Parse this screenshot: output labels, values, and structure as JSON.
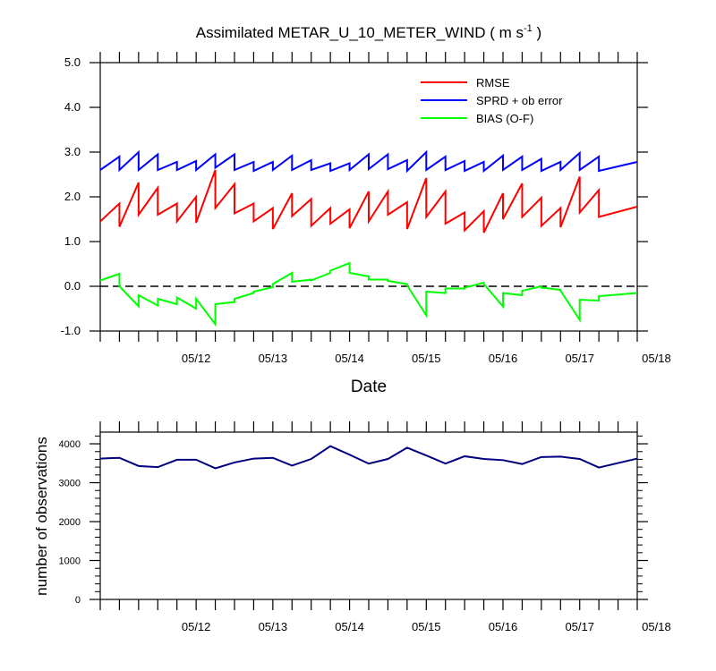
{
  "chart_data": [
    {
      "type": "line",
      "title": "Assimilated METAR_U_10_METER_WIND",
      "units": "( m s",
      "units_exp": "-1",
      "units_close": " )",
      "xlabel": "Date",
      "ylabel": "",
      "x_range": [
        "05/11 06:00",
        "05/18 06:00"
      ],
      "ylim": [
        -1.0,
        5.0
      ],
      "ytick_labels": [
        "-1.0",
        "0.0",
        "1.0",
        "2.0",
        "3.0",
        "4.0",
        "5.0"
      ],
      "xtick_labels": [
        "05/12",
        "05/13",
        "05/14",
        "05/15",
        "05/16",
        "05/17",
        "05/18"
      ],
      "zero_line": "dashed",
      "grid": false,
      "legend_position": "top-right",
      "series": [
        {
          "name": "RMSE",
          "color": "#ff0000",
          "points": [
            [
              "05/11 06:00",
              1.45
            ],
            [
              "05/11 12:00",
              1.85
            ],
            [
              "05/11 12:00",
              1.33
            ],
            [
              "05/11 18:00",
              2.32
            ],
            [
              "05/11 18:00",
              1.6
            ],
            [
              "05/12 00:00",
              2.2
            ],
            [
              "05/12 00:00",
              1.6
            ],
            [
              "05/12 06:00",
              1.85
            ],
            [
              "05/12 06:00",
              1.45
            ],
            [
              "05/12 12:00",
              2.0
            ],
            [
              "05/12 12:00",
              1.42
            ],
            [
              "05/12 18:00",
              2.6
            ],
            [
              "05/12 18:00",
              1.75
            ],
            [
              "05/13 00:00",
              2.28
            ],
            [
              "05/13 00:00",
              1.63
            ],
            [
              "05/13 06:00",
              1.85
            ],
            [
              "05/13 06:00",
              1.45
            ],
            [
              "05/13 12:00",
              1.75
            ],
            [
              "05/13 12:00",
              1.28
            ],
            [
              "05/13 18:00",
              2.08
            ],
            [
              "05/13 18:00",
              1.57
            ],
            [
              "05/14 00:00",
              1.95
            ],
            [
              "05/14 00:00",
              1.35
            ],
            [
              "05/14 06:00",
              1.75
            ],
            [
              "05/14 06:00",
              1.4
            ],
            [
              "05/14 12:00",
              1.72
            ],
            [
              "05/14 12:00",
              1.3
            ],
            [
              "05/14 18:00",
              2.12
            ],
            [
              "05/14 18:00",
              1.45
            ],
            [
              "05/15 00:00",
              2.12
            ],
            [
              "05/15 00:00",
              1.6
            ],
            [
              "05/15 06:00",
              1.88
            ],
            [
              "05/15 06:00",
              1.28
            ],
            [
              "05/15 12:00",
              2.42
            ],
            [
              "05/15 12:00",
              1.55
            ],
            [
              "05/15 18:00",
              2.12
            ],
            [
              "05/15 18:00",
              1.4
            ],
            [
              "05/16 00:00",
              1.65
            ],
            [
              "05/16 00:00",
              1.25
            ],
            [
              "05/16 06:00",
              1.68
            ],
            [
              "05/16 06:00",
              1.2
            ],
            [
              "05/16 12:00",
              2.08
            ],
            [
              "05/16 12:00",
              1.5
            ],
            [
              "05/16 18:00",
              2.3
            ],
            [
              "05/16 18:00",
              1.55
            ],
            [
              "05/17 00:00",
              1.98
            ],
            [
              "05/17 00:00",
              1.35
            ],
            [
              "05/17 06:00",
              1.75
            ],
            [
              "05/17 06:00",
              1.32
            ],
            [
              "05/17 12:00",
              2.45
            ],
            [
              "05/17 12:00",
              1.65
            ],
            [
              "05/17 18:00",
              2.15
            ],
            [
              "05/17 18:00",
              1.55
            ],
            [
              "05/18 06:00",
              1.78
            ]
          ]
        },
        {
          "name": "SPRD + ob error",
          "color": "#0000ff",
          "points": [
            [
              "05/11 06:00",
              2.6
            ],
            [
              "05/11 12:00",
              2.9
            ],
            [
              "05/11 12:00",
              2.6
            ],
            [
              "05/11 18:00",
              3.0
            ],
            [
              "05/11 18:00",
              2.6
            ],
            [
              "05/12 00:00",
              2.95
            ],
            [
              "05/12 00:00",
              2.6
            ],
            [
              "05/12 06:00",
              2.78
            ],
            [
              "05/12 06:00",
              2.6
            ],
            [
              "05/12 12:00",
              2.8
            ],
            [
              "05/12 12:00",
              2.6
            ],
            [
              "05/12 18:00",
              2.95
            ],
            [
              "05/12 18:00",
              2.65
            ],
            [
              "05/13 00:00",
              2.95
            ],
            [
              "05/13 00:00",
              2.6
            ],
            [
              "05/13 06:00",
              2.78
            ],
            [
              "05/13 06:00",
              2.58
            ],
            [
              "05/13 12:00",
              2.78
            ],
            [
              "05/13 12:00",
              2.6
            ],
            [
              "05/13 18:00",
              2.92
            ],
            [
              "05/13 18:00",
              2.6
            ],
            [
              "05/14 00:00",
              2.82
            ],
            [
              "05/14 00:00",
              2.6
            ],
            [
              "05/14 06:00",
              2.75
            ],
            [
              "05/14 06:00",
              2.58
            ],
            [
              "05/14 12:00",
              2.75
            ],
            [
              "05/14 12:00",
              2.6
            ],
            [
              "05/14 18:00",
              2.95
            ],
            [
              "05/14 18:00",
              2.62
            ],
            [
              "05/15 00:00",
              2.95
            ],
            [
              "05/15 00:00",
              2.62
            ],
            [
              "05/15 06:00",
              2.82
            ],
            [
              "05/15 06:00",
              2.58
            ],
            [
              "05/15 12:00",
              3.0
            ],
            [
              "05/15 12:00",
              2.6
            ],
            [
              "05/15 18:00",
              2.9
            ],
            [
              "05/15 18:00",
              2.6
            ],
            [
              "05/16 00:00",
              2.8
            ],
            [
              "05/16 00:00",
              2.58
            ],
            [
              "05/16 06:00",
              2.78
            ],
            [
              "05/16 06:00",
              2.58
            ],
            [
              "05/16 12:00",
              2.92
            ],
            [
              "05/16 12:00",
              2.6
            ],
            [
              "05/16 18:00",
              2.9
            ],
            [
              "05/16 18:00",
              2.6
            ],
            [
              "05/17 00:00",
              2.85
            ],
            [
              "05/17 00:00",
              2.58
            ],
            [
              "05/17 06:00",
              2.78
            ],
            [
              "05/17 06:00",
              2.6
            ],
            [
              "05/17 12:00",
              2.98
            ],
            [
              "05/17 12:00",
              2.6
            ],
            [
              "05/17 18:00",
              2.9
            ],
            [
              "05/17 18:00",
              2.58
            ],
            [
              "05/18 06:00",
              2.78
            ]
          ]
        },
        {
          "name": "BIAS (O-F)",
          "color": "#00ff00",
          "points": [
            [
              "05/11 06:00",
              0.13
            ],
            [
              "05/11 12:00",
              0.28
            ],
            [
              "05/11 12:00",
              0.0
            ],
            [
              "05/11 18:00",
              -0.45
            ],
            [
              "05/11 18:00",
              -0.2
            ],
            [
              "05/12 00:00",
              -0.43
            ],
            [
              "05/12 00:00",
              -0.28
            ],
            [
              "05/12 06:00",
              -0.4
            ],
            [
              "05/12 06:00",
              -0.25
            ],
            [
              "05/12 12:00",
              -0.5
            ],
            [
              "05/12 12:00",
              -0.28
            ],
            [
              "05/12 18:00",
              -0.85
            ],
            [
              "05/12 18:00",
              -0.4
            ],
            [
              "05/13 00:00",
              -0.35
            ],
            [
              "05/13 00:00",
              -0.28
            ],
            [
              "05/13 06:00",
              -0.15
            ],
            [
              "05/13 06:00",
              -0.12
            ],
            [
              "05/13 12:00",
              -0.02
            ],
            [
              "05/13 12:00",
              0.05
            ],
            [
              "05/13 18:00",
              0.3
            ],
            [
              "05/13 18:00",
              0.1
            ],
            [
              "05/14 00:00",
              0.15
            ],
            [
              "05/14 00:00",
              0.13
            ],
            [
              "05/14 06:00",
              0.3
            ],
            [
              "05/14 06:00",
              0.35
            ],
            [
              "05/14 12:00",
              0.52
            ],
            [
              "05/14 12:00",
              0.3
            ],
            [
              "05/14 18:00",
              0.22
            ],
            [
              "05/14 18:00",
              0.15
            ],
            [
              "05/15 00:00",
              0.15
            ],
            [
              "05/15 00:00",
              0.12
            ],
            [
              "05/15 06:00",
              0.05
            ],
            [
              "05/15 06:00",
              0.02
            ],
            [
              "05/15 12:00",
              -0.65
            ],
            [
              "05/15 12:00",
              -0.12
            ],
            [
              "05/15 18:00",
              -0.15
            ],
            [
              "05/15 18:00",
              -0.05
            ],
            [
              "05/16 00:00",
              -0.05
            ],
            [
              "05/16 00:00",
              -0.03
            ],
            [
              "05/16 06:00",
              0.08
            ],
            [
              "05/16 06:00",
              0.05
            ],
            [
              "05/16 12:00",
              -0.45
            ],
            [
              "05/16 12:00",
              -0.15
            ],
            [
              "05/16 18:00",
              -0.2
            ],
            [
              "05/16 18:00",
              -0.1
            ],
            [
              "05/17 00:00",
              0.0
            ],
            [
              "05/17 00:00",
              -0.03
            ],
            [
              "05/17 06:00",
              -0.08
            ],
            [
              "05/17 06:00",
              -0.1
            ],
            [
              "05/17 12:00",
              -0.75
            ],
            [
              "05/17 12:00",
              -0.3
            ],
            [
              "05/17 18:00",
              -0.32
            ],
            [
              "05/17 18:00",
              -0.22
            ],
            [
              "05/18 06:00",
              -0.15
            ]
          ]
        }
      ]
    },
    {
      "type": "line",
      "ylabel": "number of observations",
      "x_range": [
        "05/11 06:00",
        "05/18 06:00"
      ],
      "ylim": [
        0,
        4300
      ],
      "ytick_labels": [
        "0",
        "1000",
        "2000",
        "3000",
        "4000"
      ],
      "xtick_labels": [
        "05/12",
        "05/13",
        "05/14",
        "05/15",
        "05/16",
        "05/17",
        "05/18"
      ],
      "grid": false,
      "series": [
        {
          "color": "#000080",
          "points": [
            [
              "05/11 06:00",
              3620
            ],
            [
              "05/11 12:00",
              3640
            ],
            [
              "05/11 18:00",
              3430
            ],
            [
              "05/12 00:00",
              3400
            ],
            [
              "05/12 06:00",
              3590
            ],
            [
              "05/12 12:00",
              3590
            ],
            [
              "05/12 18:00",
              3370
            ],
            [
              "05/13 00:00",
              3520
            ],
            [
              "05/13 06:00",
              3620
            ],
            [
              "05/13 12:00",
              3640
            ],
            [
              "05/13 18:00",
              3440
            ],
            [
              "05/14 00:00",
              3610
            ],
            [
              "05/14 06:00",
              3940
            ],
            [
              "05/14 12:00",
              3720
            ],
            [
              "05/14 18:00",
              3490
            ],
            [
              "05/15 00:00",
              3610
            ],
            [
              "05/15 06:00",
              3900
            ],
            [
              "05/15 12:00",
              3700
            ],
            [
              "05/15 18:00",
              3490
            ],
            [
              "05/16 00:00",
              3680
            ],
            [
              "05/16 06:00",
              3610
            ],
            [
              "05/16 12:00",
              3580
            ],
            [
              "05/16 18:00",
              3480
            ],
            [
              "05/17 00:00",
              3660
            ],
            [
              "05/17 06:00",
              3670
            ],
            [
              "05/17 12:00",
              3610
            ],
            [
              "05/17 18:00",
              3390
            ],
            [
              "05/18 06:00",
              3620
            ]
          ]
        }
      ]
    }
  ]
}
